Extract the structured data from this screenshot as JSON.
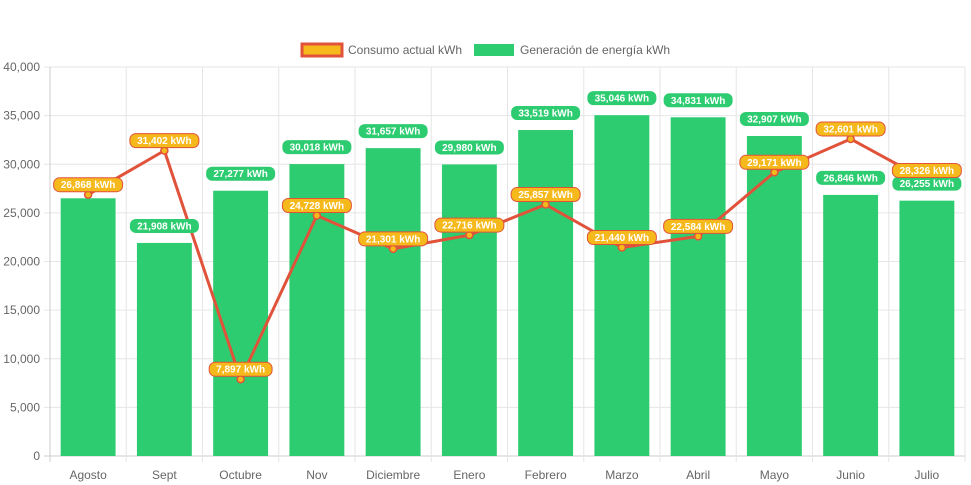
{
  "chart_data": {
    "type": "bar",
    "categories": [
      "Agosto",
      "Sept",
      "Octubre",
      "Nov",
      "Diciembre",
      "Enero",
      "Febrero",
      "Marzo",
      "Abril",
      "Mayo",
      "Junio",
      "Julio"
    ],
    "series": [
      {
        "name": "Consumo actual kWh",
        "type": "line",
        "color": "#e0533a",
        "point_color": "#f6b91b",
        "values": [
          26868,
          31402,
          7897,
          24728,
          21301,
          22716,
          25857,
          21440,
          22584,
          29171,
          32601,
          28326
        ],
        "labels": [
          "26,868 kWh",
          "31,402 kWh",
          "7,897 kWh",
          "24,728 kWh",
          "21,301 kWh",
          "22,716 kWh",
          "25,857 kWh",
          "21,440 kWh",
          "22,584 kWh",
          "29,171 kWh",
          "32,601 kWh",
          "28,326 kWh"
        ]
      },
      {
        "name": "Generación de energía kWh",
        "type": "bar",
        "color": "#2ecc71",
        "values": [
          26500,
          21908,
          27277,
          30018,
          31657,
          29980,
          33519,
          35046,
          34831,
          32907,
          26846,
          26255
        ],
        "labels": [
          "",
          "21,908 kWh",
          "27,277 kWh",
          "30,018 kWh",
          "31,657 kWh",
          "29,980 kWh",
          "33,519 kWh",
          "35,046 kWh",
          "34,831 kWh",
          "32,907 kWh",
          "26,846 kWh",
          "26,255 kWh"
        ]
      }
    ],
    "ylim": [
      0,
      40000
    ],
    "yticks": [
      "0",
      "5,000",
      "10,000",
      "15,000",
      "20,000",
      "25,000",
      "30,000",
      "35,000",
      "40,000"
    ],
    "ytick_values": [
      0,
      5000,
      10000,
      15000,
      20000,
      25000,
      30000,
      35000,
      40000
    ],
    "grid": true,
    "legend_position": "top-center"
  }
}
